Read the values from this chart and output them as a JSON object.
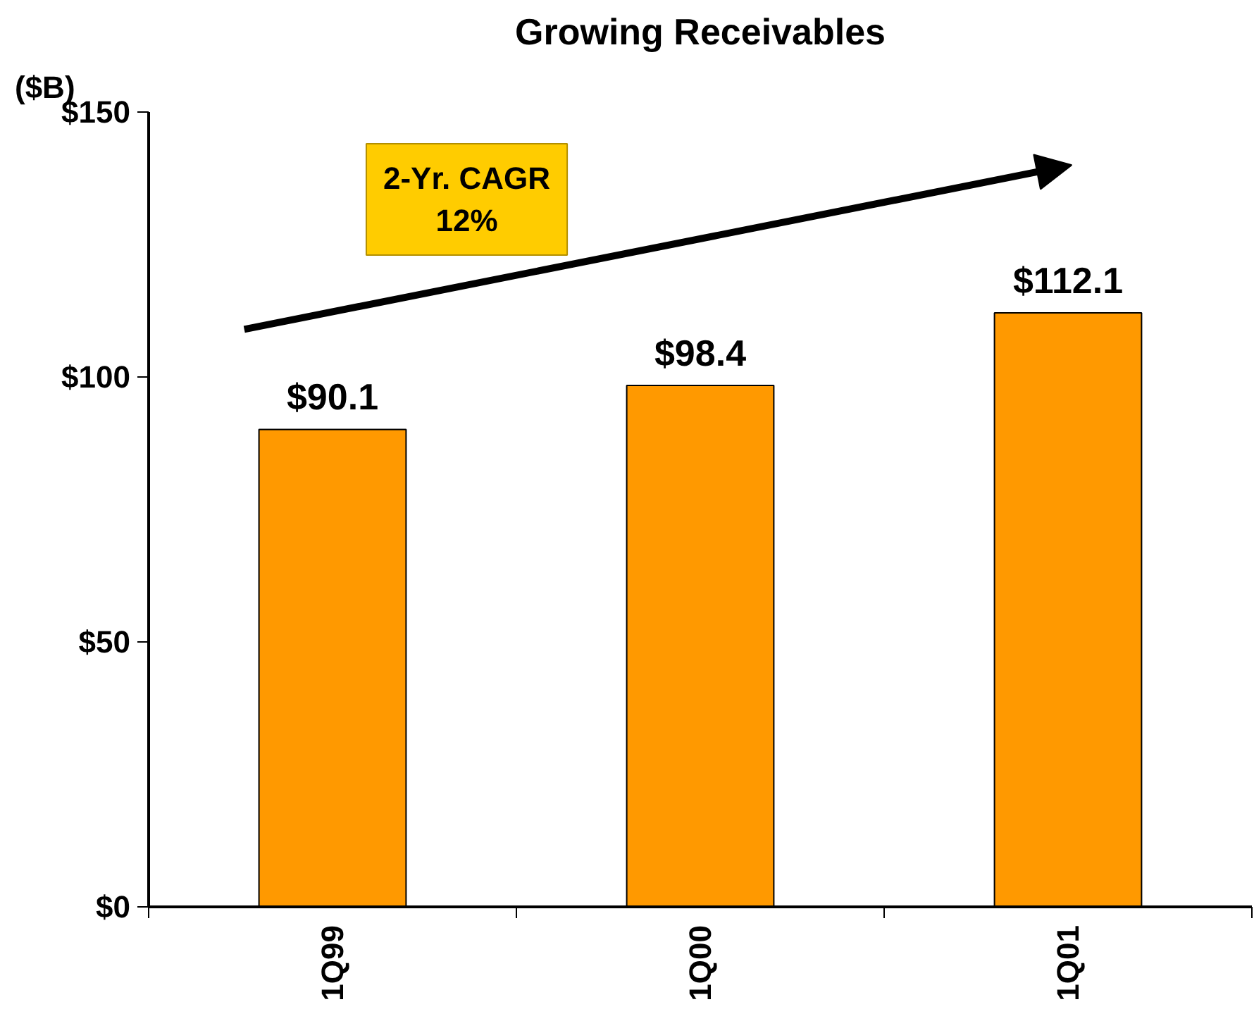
{
  "chart_data": {
    "type": "bar",
    "title": "Growing Receivables",
    "ylabel": "($B)",
    "categories": [
      "1Q99",
      "1Q00",
      "1Q01"
    ],
    "values": [
      90.1,
      98.4,
      112.1
    ],
    "color": "#ff9900",
    "value_labels": [
      "$90.1",
      "$98.4",
      "$112.1"
    ],
    "ylim": [
      0,
      150
    ],
    "yticks": [
      {
        "value": 0,
        "label": "$0"
      },
      {
        "value": 50,
        "label": "$50"
      },
      {
        "value": 100,
        "label": "$100"
      },
      {
        "value": 150,
        "label": "$150"
      }
    ],
    "annotations": [
      "2-Yr. CAGR\n12%"
    ],
    "grid": false
  }
}
